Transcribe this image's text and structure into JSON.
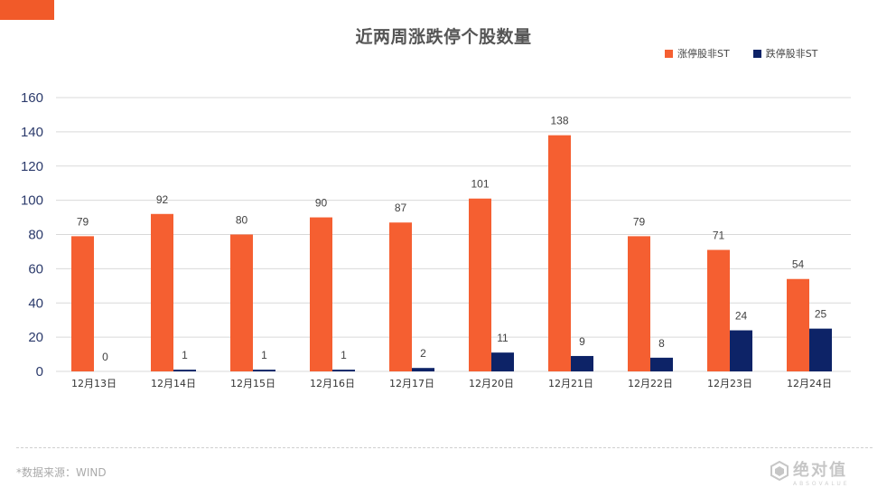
{
  "colors": {
    "accent_tab": "#F15A29",
    "series_up": "#F55F31",
    "series_down": "#0D2367",
    "axis_text": "#2B3A6B",
    "grid": "#D9D9D9",
    "label_text": "#404040"
  },
  "page": {
    "source_label": "*数据来源：WIND"
  },
  "watermark": {
    "text": "绝对值",
    "sub": "ABSOVALUE"
  },
  "chart_data": {
    "type": "bar",
    "title": "近两周涨跌停个股数量",
    "xlabel": "",
    "ylabel": "",
    "categories": [
      "12月13日",
      "12月14日",
      "12月15日",
      "12月16日",
      "12月17日",
      "12月20日",
      "12月21日",
      "12月22日",
      "12月23日",
      "12月24日"
    ],
    "series": [
      {
        "name": "涨停股非ST",
        "color": "#F55F31",
        "values": [
          79,
          92,
          80,
          90,
          87,
          101,
          138,
          79,
          71,
          54
        ]
      },
      {
        "name": "跌停股非ST",
        "color": "#0D2367",
        "values": [
          0,
          1,
          1,
          1,
          2,
          11,
          9,
          8,
          24,
          25
        ]
      }
    ],
    "ylim": [
      0,
      160
    ],
    "yticks": [
      0,
      20,
      40,
      60,
      80,
      100,
      120,
      140,
      160
    ],
    "grid": true,
    "legend_position": "top-right",
    "data_labels": true
  }
}
